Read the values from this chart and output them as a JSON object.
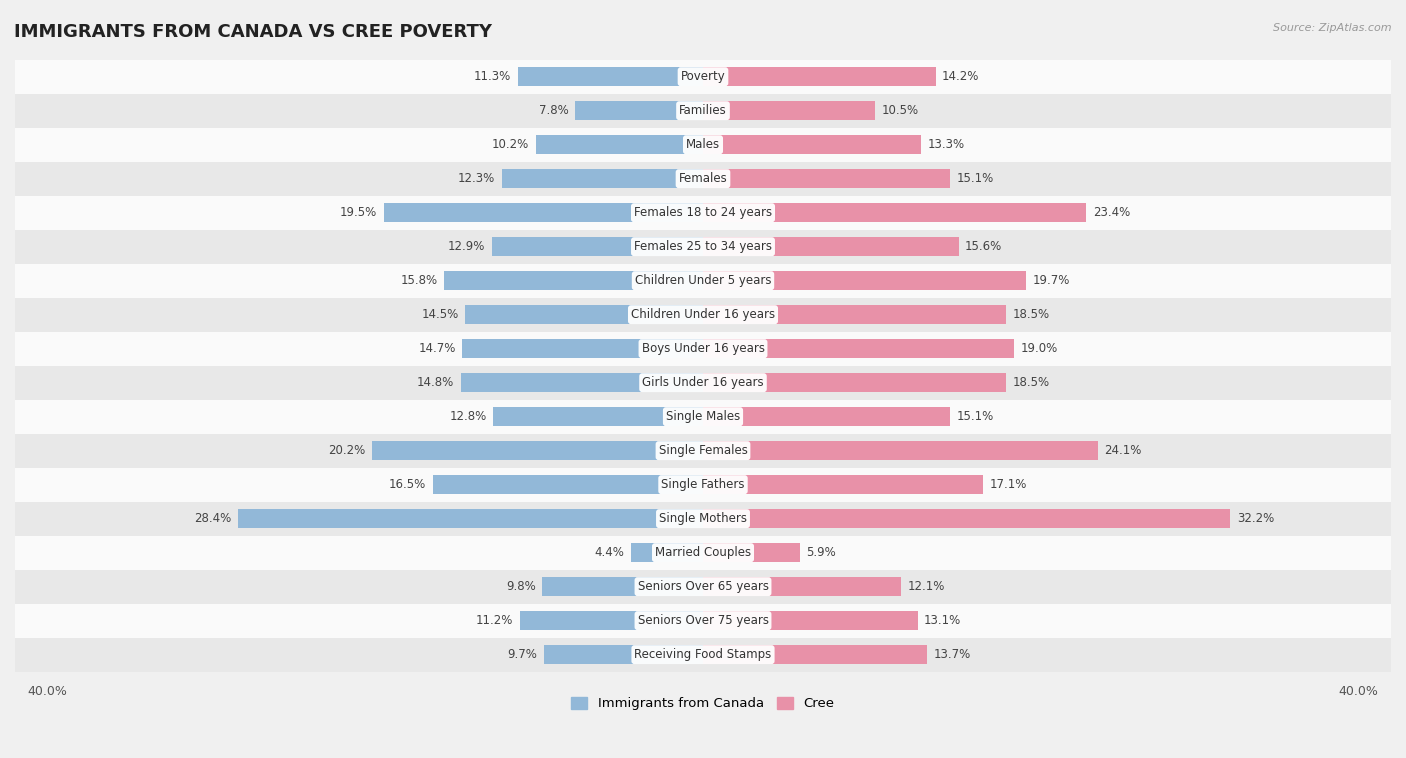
{
  "title": "IMMIGRANTS FROM CANADA VS CREE POVERTY",
  "source": "Source: ZipAtlas.com",
  "categories": [
    "Poverty",
    "Families",
    "Males",
    "Females",
    "Females 18 to 24 years",
    "Females 25 to 34 years",
    "Children Under 5 years",
    "Children Under 16 years",
    "Boys Under 16 years",
    "Girls Under 16 years",
    "Single Males",
    "Single Females",
    "Single Fathers",
    "Single Mothers",
    "Married Couples",
    "Seniors Over 65 years",
    "Seniors Over 75 years",
    "Receiving Food Stamps"
  ],
  "left_values": [
    11.3,
    7.8,
    10.2,
    12.3,
    19.5,
    12.9,
    15.8,
    14.5,
    14.7,
    14.8,
    12.8,
    20.2,
    16.5,
    28.4,
    4.4,
    9.8,
    11.2,
    9.7
  ],
  "right_values": [
    14.2,
    10.5,
    13.3,
    15.1,
    23.4,
    15.6,
    19.7,
    18.5,
    19.0,
    18.5,
    15.1,
    24.1,
    17.1,
    32.2,
    5.9,
    12.1,
    13.1,
    13.7
  ],
  "left_color": "#92b8d8",
  "right_color": "#e891a8",
  "bar_height": 0.55,
  "legend_left": "Immigrants from Canada",
  "legend_right": "Cree",
  "background_color": "#f0f0f0",
  "bar_row_bg_light": "#fafafa",
  "bar_row_bg_dark": "#e8e8e8",
  "title_fontsize": 13,
  "label_fontsize": 8.5,
  "value_fontsize": 8.5,
  "axis_max": 40.0
}
